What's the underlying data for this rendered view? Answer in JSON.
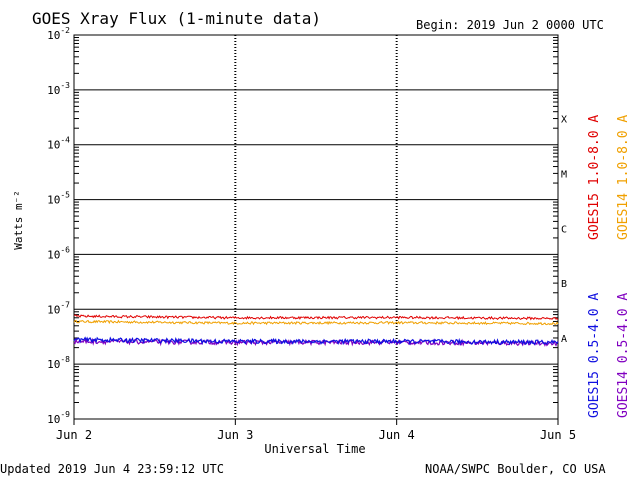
{
  "header": {
    "title": "GOES Xray Flux (1-minute data)",
    "begin": "Begin:  2019 Jun 2 0000 UTC"
  },
  "footer": {
    "updated": "Updated 2019 Jun  4 23:59:12 UTC",
    "credit": "NOAA/SWPC Boulder, CO USA"
  },
  "chart_data": {
    "type": "line",
    "title": "GOES Xray Flux (1-minute data)",
    "xlabel": "Universal Time",
    "ylabel": "Watts m⁻²",
    "y_scale": "log",
    "ylim": [
      1e-09,
      0.01
    ],
    "x_ticks": [
      "Jun 2",
      "Jun 3",
      "Jun 4",
      "Jun 5"
    ],
    "y_ticks": [
      {
        "base": "10",
        "exp": "-2",
        "value": 0.01
      },
      {
        "base": "10",
        "exp": "-3",
        "value": 0.001
      },
      {
        "base": "10",
        "exp": "-4",
        "value": 0.0001
      },
      {
        "base": "10",
        "exp": "-5",
        "value": 1e-05
      },
      {
        "base": "10",
        "exp": "-6",
        "value": 1e-06
      },
      {
        "base": "10",
        "exp": "-7",
        "value": 1e-07
      },
      {
        "base": "10",
        "exp": "-8",
        "value": 1e-08
      },
      {
        "base": "10",
        "exp": "-9",
        "value": 1e-09
      }
    ],
    "flare_classes": [
      {
        "label": "X",
        "value": 0.0003
      },
      {
        "label": "M",
        "value": 3e-05
      },
      {
        "label": "C",
        "value": 3e-06
      },
      {
        "label": "B",
        "value": 3e-07
      },
      {
        "label": "A",
        "value": 3e-08
      }
    ],
    "grid": true,
    "series": [
      {
        "name": "GOES15 1.0-8.0 A",
        "color": "#e00000",
        "level": 7.2e-08,
        "x": [
          "Jun 2",
          "Jun 3",
          "Jun 4",
          "Jun 5"
        ],
        "values": [
          7.5e-08,
          7e-08,
          7.1e-08,
          6.8e-08
        ]
      },
      {
        "name": "GOES14 1.0-8.0 A",
        "color": "#f0a000",
        "level": 5.8e-08,
        "x": [
          "Jun 2",
          "Jun 3",
          "Jun 4",
          "Jun 5"
        ],
        "values": [
          6e-08,
          5.6e-08,
          5.7e-08,
          5.5e-08
        ]
      },
      {
        "name": "GOES15 0.5-4.0 A",
        "color": "#1010e0",
        "level": 2.7e-08,
        "x": [
          "Jun 2",
          "Jun 3",
          "Jun 4",
          "Jun 5"
        ],
        "values": [
          2.8e-08,
          2.6e-08,
          2.6e-08,
          2.5e-08
        ]
      },
      {
        "name": "GOES14 0.5-4.0 A",
        "color": "#8000c0",
        "level": 2.5e-08,
        "x": [
          "Jun 2",
          "Jun 3",
          "Jun 4",
          "Jun 5"
        ],
        "values": [
          2.6e-08,
          2.5e-08,
          2.5e-08,
          2.4e-08
        ]
      }
    ]
  }
}
